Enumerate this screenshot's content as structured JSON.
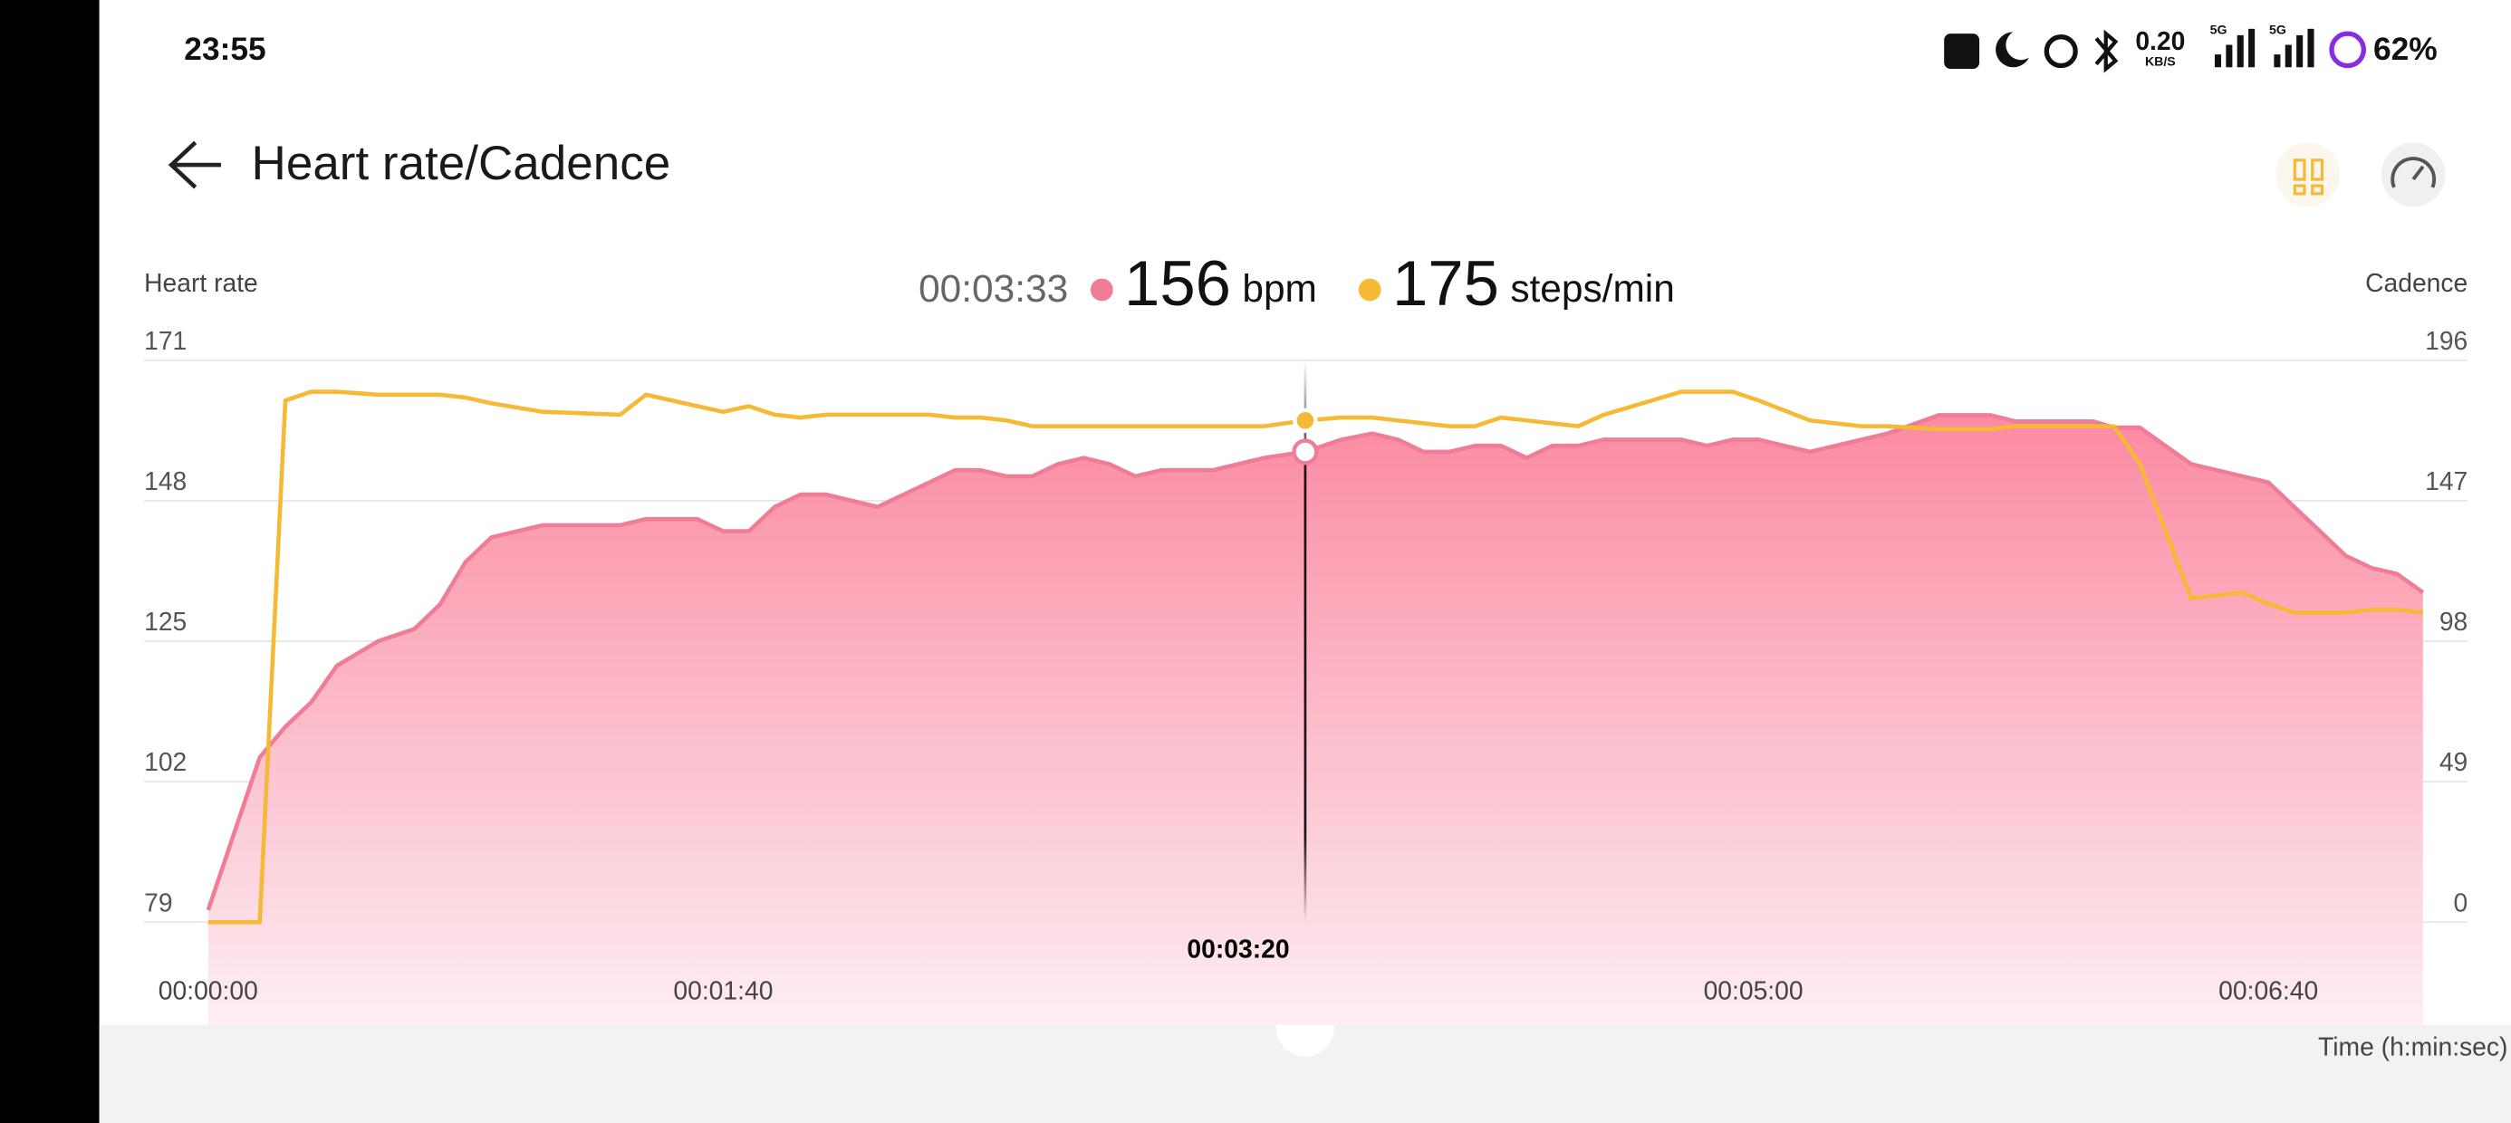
{
  "status_bar": {
    "time": "23:55",
    "network_speed": "0.20",
    "network_unit": "KB/S",
    "network_type": "5G",
    "battery": "62%"
  },
  "header": {
    "title": "Heart rate/Cadence"
  },
  "chart_data": {
    "type": "line",
    "y_label": "Heart rate",
    "y2_label": "Cadence",
    "x_label": "Time (h:min:sec)",
    "cursor": {
      "value": 213,
      "label": "00:03:33"
    },
    "x": [
      0,
      10,
      15,
      20,
      25,
      33,
      40,
      45,
      50,
      55,
      65,
      80,
      85,
      95,
      100,
      105,
      110,
      115,
      120,
      130,
      140,
      145,
      150,
      155,
      160,
      165,
      170,
      175,
      180,
      185,
      195,
      205,
      213,
      220,
      226,
      231,
      236,
      241,
      246,
      251,
      256,
      261,
      266,
      271,
      286,
      291,
      296,
      301,
      311,
      321,
      326,
      336,
      346,
      351,
      366,
      370,
      375,
      385,
      395,
      400,
      405,
      410,
      415,
      420,
      425,
      430
    ],
    "series": [
      {
        "name": "Heart rate",
        "unit": "bpm",
        "color": "#f07d98",
        "fill": true,
        "axis": "y",
        "values": [
          81,
          106,
          111,
          115,
          121,
          125,
          127,
          131,
          138,
          142,
          144,
          144,
          145,
          145,
          143,
          143,
          147,
          149,
          149,
          147,
          151,
          153,
          153,
          152,
          152,
          154,
          155,
          154,
          152,
          153,
          153,
          155,
          156,
          158,
          159,
          158,
          156,
          156,
          157,
          157,
          155,
          157,
          157,
          158,
          158,
          157,
          158,
          158,
          156,
          158,
          159,
          162,
          162,
          161,
          161,
          160,
          160,
          154,
          152,
          151,
          147,
          143,
          139,
          137,
          136,
          133
        ]
      },
      {
        "name": "Cadence",
        "unit": "steps/min",
        "color": "#f5b935",
        "fill": false,
        "axis": "y2",
        "values": [
          0,
          0,
          182,
          185,
          185,
          184,
          184,
          184,
          183,
          181,
          178,
          177,
          184,
          180,
          178,
          180,
          177,
          176,
          177,
          177,
          177,
          176,
          176,
          175,
          173,
          173,
          173,
          173,
          173,
          173,
          173,
          173,
          175,
          176,
          176,
          175,
          174,
          173,
          173,
          176,
          175,
          174,
          173,
          177,
          185,
          185,
          185,
          182,
          175,
          173,
          173,
          172,
          172,
          173,
          173,
          173,
          160,
          113,
          115,
          111,
          108,
          108,
          108,
          109,
          109,
          108
        ]
      }
    ],
    "xlim": [
      0,
      430
    ],
    "xticks": [
      {
        "value": 0,
        "label": "00:00:00"
      },
      {
        "value": 100,
        "label": "00:01:40"
      },
      {
        "value": 200,
        "label": "00:03:20"
      },
      {
        "value": 300,
        "label": "00:05:00"
      },
      {
        "value": 400,
        "label": "00:06:40"
      }
    ],
    "ylim": [
      79,
      171
    ],
    "yticks": [
      79,
      102,
      125,
      148,
      171
    ],
    "y2lim": [
      0,
      196
    ],
    "y2ticks": [
      0,
      49,
      98,
      147,
      196
    ],
    "grid": true
  }
}
